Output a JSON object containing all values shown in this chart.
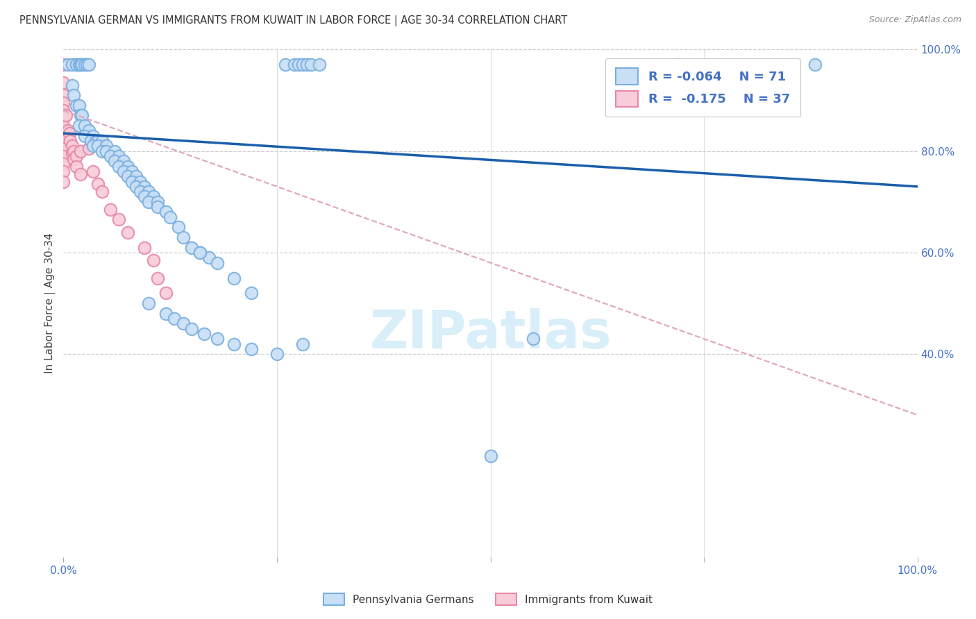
{
  "title": "PENNSYLVANIA GERMAN VS IMMIGRANTS FROM KUWAIT IN LABOR FORCE | AGE 30-34 CORRELATION CHART",
  "source": "Source: ZipAtlas.com",
  "ylabel": "In Labor Force | Age 30-34",
  "watermark": "ZIPatlas",
  "legend_label_blue": "Pennsylvania Germans",
  "legend_label_pink": "Immigrants from Kuwait",
  "blue_scatter_face": "#c8dff5",
  "blue_scatter_edge": "#7aafe0",
  "pink_scatter_face": "#f8ccd8",
  "pink_scatter_edge": "#e888a8",
  "blue_trend_color": "#1a5faa",
  "pink_trend_color": "#e0a8bc",
  "grid_color": "#cccccc",
  "bg_color": "#ffffff",
  "watermark_color": "#d8eef8",
  "blue_scatter": [
    [
      0.5,
      97.0
    ],
    [
      1.0,
      97.0
    ],
    [
      1.5,
      97.0
    ],
    [
      1.5,
      97.0
    ],
    [
      1.8,
      97.0
    ],
    [
      2.0,
      97.0
    ],
    [
      2.2,
      97.0
    ],
    [
      2.5,
      97.0
    ],
    [
      2.7,
      97.0
    ],
    [
      3.0,
      97.0
    ],
    [
      1.0,
      93.0
    ],
    [
      1.2,
      91.0
    ],
    [
      1.5,
      89.0
    ],
    [
      1.8,
      89.0
    ],
    [
      2.0,
      87.0
    ],
    [
      2.2,
      87.0
    ],
    [
      1.8,
      85.0
    ],
    [
      2.5,
      85.0
    ],
    [
      3.0,
      84.0
    ],
    [
      2.5,
      83.0
    ],
    [
      3.5,
      83.0
    ],
    [
      3.2,
      82.0
    ],
    [
      3.8,
      82.0
    ],
    [
      4.0,
      82.0
    ],
    [
      4.5,
      82.0
    ],
    [
      3.5,
      81.0
    ],
    [
      4.0,
      81.0
    ],
    [
      5.0,
      81.0
    ],
    [
      4.5,
      80.0
    ],
    [
      5.0,
      80.0
    ],
    [
      6.0,
      80.0
    ],
    [
      5.5,
      79.0
    ],
    [
      6.5,
      79.0
    ],
    [
      6.0,
      78.0
    ],
    [
      7.0,
      78.0
    ],
    [
      6.5,
      77.0
    ],
    [
      7.5,
      77.0
    ],
    [
      7.0,
      76.0
    ],
    [
      8.0,
      76.0
    ],
    [
      7.5,
      75.0
    ],
    [
      8.5,
      75.0
    ],
    [
      8.0,
      74.0
    ],
    [
      9.0,
      74.0
    ],
    [
      8.5,
      73.0
    ],
    [
      9.5,
      73.0
    ],
    [
      9.0,
      72.0
    ],
    [
      10.0,
      72.0
    ],
    [
      9.5,
      71.0
    ],
    [
      10.5,
      71.0
    ],
    [
      10.0,
      70.0
    ],
    [
      11.0,
      70.0
    ],
    [
      11.0,
      69.0
    ],
    [
      12.0,
      68.0
    ],
    [
      12.5,
      67.0
    ],
    [
      13.5,
      65.0
    ],
    [
      14.0,
      63.0
    ],
    [
      15.0,
      61.0
    ],
    [
      16.0,
      60.0
    ],
    [
      17.0,
      59.0
    ],
    [
      18.0,
      58.0
    ],
    [
      20.0,
      55.0
    ],
    [
      22.0,
      52.0
    ],
    [
      10.0,
      50.0
    ],
    [
      12.0,
      48.0
    ],
    [
      13.0,
      47.0
    ],
    [
      14.0,
      46.0
    ],
    [
      15.0,
      45.0
    ],
    [
      16.5,
      44.0
    ],
    [
      18.0,
      43.0
    ],
    [
      20.0,
      42.0
    ],
    [
      22.0,
      41.0
    ],
    [
      25.0,
      40.0
    ],
    [
      28.0,
      42.0
    ],
    [
      16.0,
      60.0
    ],
    [
      26.0,
      97.0
    ],
    [
      27.0,
      97.0
    ],
    [
      27.5,
      97.0
    ],
    [
      28.0,
      97.0
    ],
    [
      28.5,
      97.0
    ],
    [
      29.0,
      97.0
    ],
    [
      30.0,
      97.0
    ],
    [
      50.0,
      20.0
    ],
    [
      55.0,
      43.0
    ],
    [
      72.0,
      97.0
    ],
    [
      88.0,
      97.0
    ]
  ],
  "pink_scatter": [
    [
      0.0,
      97.0
    ],
    [
      0.0,
      93.5
    ],
    [
      0.0,
      91.0
    ],
    [
      0.0,
      89.5
    ],
    [
      0.0,
      88.0
    ],
    [
      0.0,
      86.5
    ],
    [
      0.0,
      85.0
    ],
    [
      0.0,
      83.5
    ],
    [
      0.0,
      82.0
    ],
    [
      0.0,
      80.5
    ],
    [
      0.0,
      79.0
    ],
    [
      0.0,
      77.5
    ],
    [
      0.0,
      76.0
    ],
    [
      0.0,
      74.0
    ],
    [
      0.3,
      87.0
    ],
    [
      0.5,
      84.0
    ],
    [
      0.7,
      83.5
    ],
    [
      0.8,
      82.0
    ],
    [
      1.0,
      81.0
    ],
    [
      1.0,
      79.5
    ],
    [
      1.2,
      80.0
    ],
    [
      1.2,
      78.5
    ],
    [
      1.5,
      79.0
    ],
    [
      1.5,
      77.0
    ],
    [
      2.0,
      75.5
    ],
    [
      2.0,
      80.0
    ],
    [
      3.0,
      80.5
    ],
    [
      3.5,
      76.0
    ],
    [
      4.0,
      73.5
    ],
    [
      4.5,
      72.0
    ],
    [
      5.5,
      68.5
    ],
    [
      6.5,
      66.5
    ],
    [
      7.5,
      64.0
    ],
    [
      9.5,
      61.0
    ],
    [
      10.5,
      58.5
    ],
    [
      11.0,
      55.0
    ],
    [
      12.0,
      52.0
    ]
  ],
  "blue_trend_x": [
    0,
    100
  ],
  "blue_trend_y": [
    83.5,
    73.0
  ],
  "pink_trend_x": [
    0,
    100
  ],
  "pink_trend_y": [
    88.0,
    28.0
  ],
  "xlim": [
    0,
    100
  ],
  "ylim": [
    0,
    100
  ],
  "x_ticks": [
    0,
    25,
    50,
    75,
    100
  ],
  "x_tick_labels": [
    "0.0%",
    "",
    "",
    "",
    "100.0%"
  ],
  "y_ticks_right": [
    40,
    60,
    80,
    100
  ],
  "y_tick_labels_right": [
    "40.0%",
    "60.0%",
    "80.0%",
    "100.0%"
  ]
}
